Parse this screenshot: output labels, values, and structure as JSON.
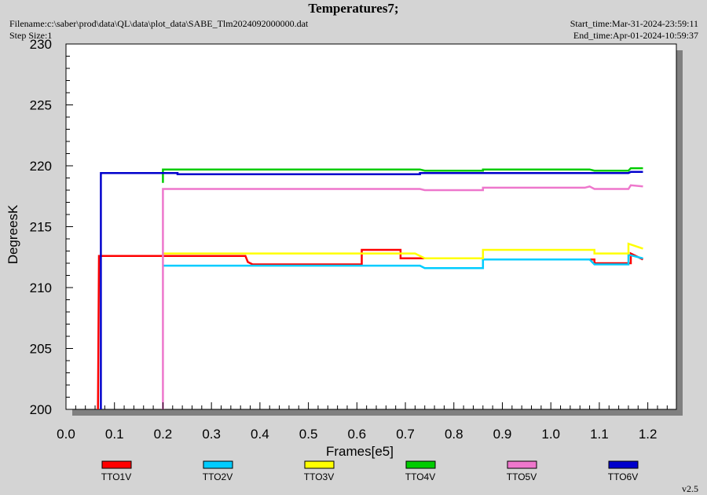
{
  "header": {
    "title": "Temperatures7;",
    "filename": "Filename:c:\\saber\\prod\\data\\QL\\data\\plot_data\\SABE_Tlm2024092000000.dat",
    "step_size": "Step Size:1",
    "start_time": "Start_time:Mar-31-2024-23:59:11",
    "end_time": "End_time:Apr-01-2024-10:59:37"
  },
  "footer": {
    "version": "v2.5"
  },
  "chart_data": {
    "type": "line",
    "xlabel": "Frames[e5]",
    "ylabel": "DegreesK",
    "xlim": [
      0.0,
      1.25
    ],
    "ylim": [
      200,
      230
    ],
    "xticks": [
      "0.0",
      "0.1",
      "0.2",
      "0.3",
      "0.4",
      "0.5",
      "0.6",
      "0.7",
      "0.8",
      "0.9",
      "1.0",
      "1.1",
      "1.2"
    ],
    "yticks": [
      "200",
      "205",
      "210",
      "215",
      "220",
      "225",
      "230"
    ],
    "legend_position": "bottom",
    "series": [
      {
        "name": "TTO1V",
        "color": "#ff0000",
        "points": [
          [
            0.066,
            200.0
          ],
          [
            0.068,
            212.6
          ],
          [
            0.37,
            212.6
          ],
          [
            0.375,
            212.1
          ],
          [
            0.385,
            211.9
          ],
          [
            0.61,
            211.9
          ],
          [
            0.61,
            213.1
          ],
          [
            0.69,
            213.1
          ],
          [
            0.69,
            212.4
          ],
          [
            0.86,
            212.4
          ],
          [
            0.86,
            212.3
          ],
          [
            1.09,
            212.3
          ],
          [
            1.09,
            212.0
          ],
          [
            1.165,
            212.0
          ],
          [
            1.165,
            212.8
          ],
          [
            1.19,
            212.3
          ]
        ]
      },
      {
        "name": "TTO2V",
        "color": "#00ccff",
        "points": [
          [
            0.2,
            211.8
          ],
          [
            0.73,
            211.8
          ],
          [
            0.74,
            211.6
          ],
          [
            0.86,
            211.6
          ],
          [
            0.86,
            212.3
          ],
          [
            1.08,
            212.3
          ],
          [
            1.09,
            211.9
          ],
          [
            1.16,
            211.9
          ],
          [
            1.16,
            212.7
          ],
          [
            1.19,
            212.4
          ]
        ]
      },
      {
        "name": "TTO3V",
        "color": "#ffff00",
        "points": [
          [
            0.2,
            212.8
          ],
          [
            0.72,
            212.8
          ],
          [
            0.74,
            212.4
          ],
          [
            0.86,
            212.4
          ],
          [
            0.86,
            213.1
          ],
          [
            1.09,
            213.1
          ],
          [
            1.09,
            212.8
          ],
          [
            1.16,
            212.8
          ],
          [
            1.16,
            213.6
          ],
          [
            1.19,
            213.2
          ]
        ]
      },
      {
        "name": "TTO4V",
        "color": "#00cc00",
        "points": [
          [
            0.2,
            218.6
          ],
          [
            0.2,
            219.7
          ],
          [
            0.73,
            219.7
          ],
          [
            0.74,
            219.6
          ],
          [
            0.86,
            219.6
          ],
          [
            0.86,
            219.7
          ],
          [
            1.08,
            219.7
          ],
          [
            1.09,
            219.6
          ],
          [
            1.16,
            219.6
          ],
          [
            1.165,
            219.8
          ],
          [
            1.19,
            219.8
          ]
        ]
      },
      {
        "name": "TTO5V",
        "color": "#ee77cc",
        "points": [
          [
            0.2,
            200.0
          ],
          [
            0.2,
            218.1
          ],
          [
            0.73,
            218.1
          ],
          [
            0.74,
            218.0
          ],
          [
            0.86,
            218.0
          ],
          [
            0.86,
            218.2
          ],
          [
            1.07,
            218.2
          ],
          [
            1.08,
            218.3
          ],
          [
            1.09,
            218.1
          ],
          [
            1.16,
            218.1
          ],
          [
            1.165,
            218.4
          ],
          [
            1.19,
            218.3
          ]
        ]
      },
      {
        "name": "TTO6V",
        "color": "#0000cc",
        "points": [
          [
            0.072,
            200.0
          ],
          [
            0.072,
            219.4
          ],
          [
            0.23,
            219.4
          ],
          [
            0.23,
            219.3
          ],
          [
            0.73,
            219.3
          ],
          [
            0.73,
            219.4
          ],
          [
            1.16,
            219.4
          ],
          [
            1.165,
            219.5
          ],
          [
            1.19,
            219.5
          ]
        ]
      }
    ]
  }
}
